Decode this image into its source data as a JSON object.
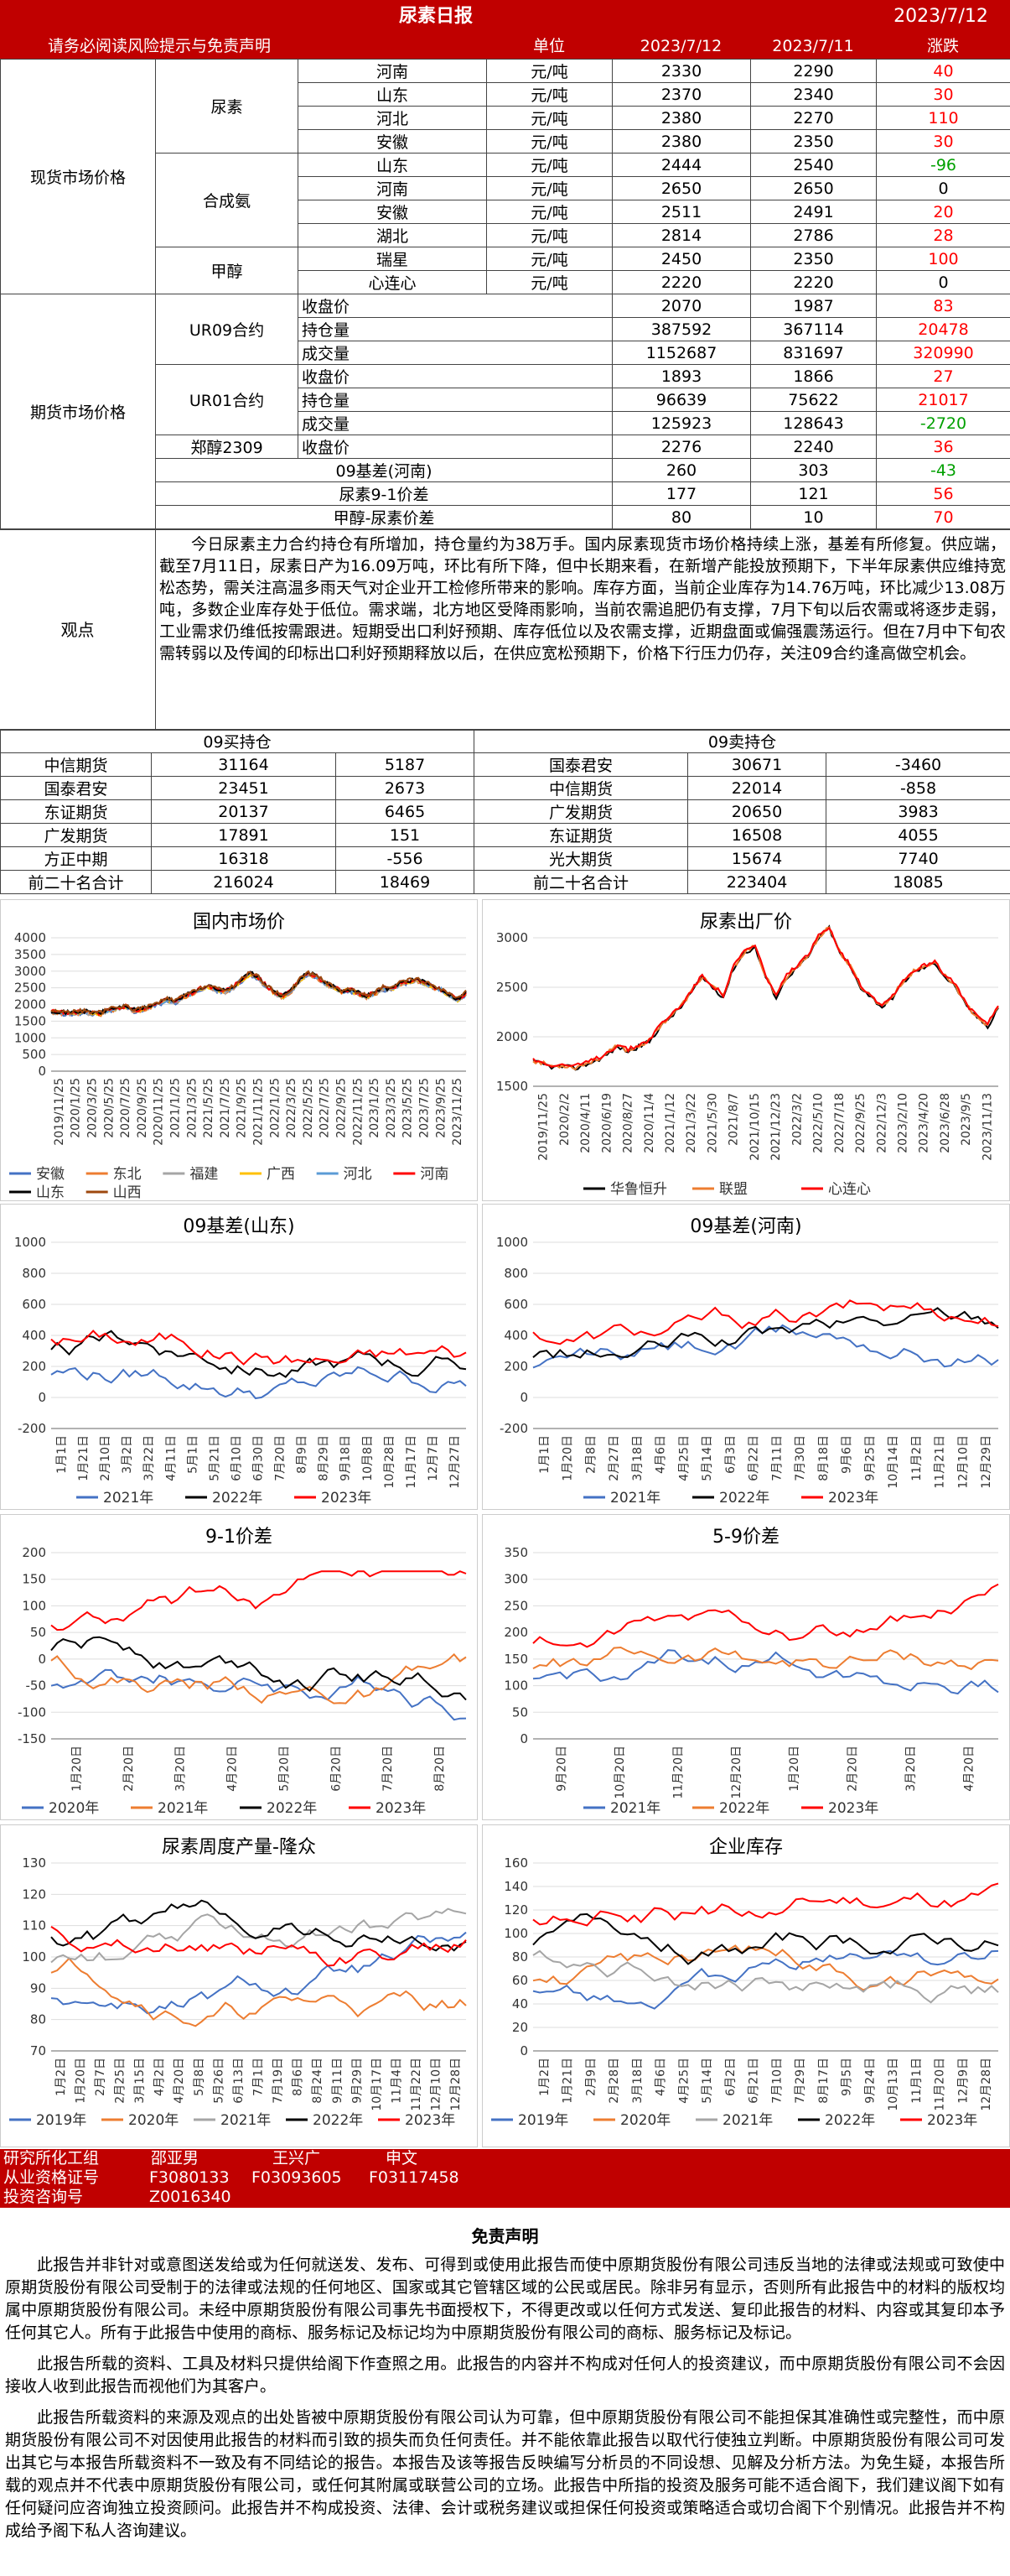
{
  "header": {
    "title": "尿素日报",
    "date": "2023/7/12",
    "notice": "请务必阅读风险提示与免责声明",
    "col_unit": "单位",
    "col_d1": "2023/7/12",
    "col_d2": "2023/7/11",
    "col_chg": "涨跌"
  },
  "spot": {
    "section": "现货市场价格",
    "groups": [
      {
        "name": "尿素",
        "rows": [
          [
            "河南",
            "元/吨",
            "2330",
            "2290",
            "40"
          ],
          [
            "山东",
            "元/吨",
            "2370",
            "2340",
            "30"
          ],
          [
            "河北",
            "元/吨",
            "2380",
            "2270",
            "110"
          ],
          [
            "安徽",
            "元/吨",
            "2380",
            "2350",
            "30"
          ]
        ]
      },
      {
        "name": "合成氨",
        "rows": [
          [
            "山东",
            "元/吨",
            "2444",
            "2540",
            "-96"
          ],
          [
            "河南",
            "元/吨",
            "2650",
            "2650",
            "0"
          ],
          [
            "安徽",
            "元/吨",
            "2511",
            "2491",
            "20"
          ],
          [
            "湖北",
            "元/吨",
            "2814",
            "2786",
            "28"
          ]
        ]
      },
      {
        "name": "甲醇",
        "rows": [
          [
            "瑞星",
            "元/吨",
            "2450",
            "2350",
            "100"
          ],
          [
            "心连心",
            "元/吨",
            "2220",
            "2220",
            "0"
          ]
        ]
      }
    ]
  },
  "futures": {
    "section": "期货市场价格",
    "groups": [
      {
        "name": "UR09合约",
        "rows": [
          [
            "收盘价",
            "2070",
            "1987",
            "83"
          ],
          [
            "持仓量",
            "387592",
            "367114",
            "20478"
          ],
          [
            "成交量",
            "1152687",
            "831697",
            "320990"
          ]
        ]
      },
      {
        "name": "UR01合约",
        "rows": [
          [
            "收盘价",
            "1893",
            "1866",
            "27"
          ],
          [
            "持仓量",
            "96639",
            "75622",
            "21017"
          ],
          [
            "成交量",
            "125923",
            "128643",
            "-2720"
          ]
        ]
      },
      {
        "name": "郑醇2309",
        "rows": [
          [
            "收盘价",
            "2276",
            "2240",
            "36"
          ]
        ]
      }
    ],
    "basis": [
      [
        "09基差(河南)",
        "260",
        "303",
        "-43"
      ],
      [
        "尿素9-1价差",
        "177",
        "121",
        "56"
      ],
      [
        "甲醇-尿素价差",
        "80",
        "10",
        "70"
      ]
    ]
  },
  "observation": {
    "label": "观点",
    "text": "今日尿素主力合约持仓有所增加，持仓量约为38万手。国内尿素现货市场价格持续上涨，基差有所修复。供应端，截至7月11日，尿素日产为16.09万吨，环比有所下降，但中长期来看，在新增产能投放预期下，下半年尿素供应维持宽松态势，需关注高温多雨天气对企业开工检修所带来的影响。库存方面，当前企业库存为14.76万吨，环比减少13.08万吨，多数企业库存处于低位。需求端，北方地区受降雨影响，当前农需追肥仍有支撑，7月下旬以后农需或将逐步走弱，工业需求仍维低按需跟进。短期受出口利好预期、库存低位以及农需支撑，近期盘面或偏强震荡运行。但在7月中下旬农需转弱以及传闻的印标出口利好预期释放以后，在供应宽松预期下，价格下行压力仍存，关注09合约逢高做空机会。"
  },
  "positions": {
    "buy_title": "09买持仓",
    "sell_title": "09卖持仓",
    "rows": [
      [
        "中信期货",
        "31164",
        "5187",
        "国泰君安",
        "30671",
        "-3460"
      ],
      [
        "国泰君安",
        "23451",
        "2673",
        "中信期货",
        "22014",
        "-858"
      ],
      [
        "东证期货",
        "20137",
        "6465",
        "广发期货",
        "20650",
        "3983"
      ],
      [
        "广发期货",
        "17891",
        "151",
        "东证期货",
        "16508",
        "4055"
      ],
      [
        "方正中期",
        "16318",
        "-556",
        "光大期货",
        "15674",
        "7740"
      ],
      [
        "前二十名合计",
        "216024",
        "18469",
        "前二十名合计",
        "223404",
        "18085"
      ]
    ]
  },
  "charts": [
    {
      "id": "c1",
      "title": "国内市场价",
      "chart_data": {
        "type": "line",
        "ylim": [
          0,
          4000
        ],
        "yticks": [
          "0",
          "500",
          "1000",
          "1500",
          "2000",
          "2500",
          "3000",
          "3500",
          "4000"
        ],
        "xticks": [
          "2019/11/25",
          "2020/1/25",
          "2020/3/25",
          "2020/5/25",
          "2020/7/25",
          "2020/9/25",
          "2020/11/25",
          "2021/1/25",
          "2021/3/25",
          "2021/5/25",
          "2021/7/25",
          "2021/9/25",
          "2021/11/25",
          "2022/1/25",
          "2022/3/25",
          "2022/5/25",
          "2022/7/25",
          "2022/9/25",
          "2022/11/25",
          "2023/1/25",
          "2023/3/25",
          "2023/5/25",
          "2023/7/25",
          "2023/9/25",
          "2023/11/25"
        ],
        "series": [
          {
            "name": "安徽",
            "color": "#4472c4"
          },
          {
            "name": "东北",
            "color": "#ed7d31"
          },
          {
            "name": "福建",
            "color": "#a5a5a5"
          },
          {
            "name": "广西",
            "color": "#ffc000"
          },
          {
            "name": "河北",
            "color": "#5b9bd5"
          },
          {
            "name": "河南",
            "color": "#ff0000"
          },
          {
            "name": "山东",
            "color": "#000000"
          },
          {
            "name": "山西",
            "color": "#9e480e"
          }
        ],
        "base": [
          1750,
          1730,
          1700,
          1720,
          1740,
          1700,
          1690,
          1800,
          1850,
          1900,
          1780,
          1820,
          1900,
          2000,
          2100,
          2050,
          2200,
          2300,
          2450,
          2500,
          2400,
          2350,
          2500,
          2700,
          2900,
          2750,
          2500,
          2300,
          2200,
          2400,
          2700,
          2900,
          2800,
          2600,
          2500,
          2350,
          2400,
          2300,
          2200,
          2300,
          2450,
          2400,
          2600,
          2650,
          2700,
          2600,
          2500,
          2400,
          2250,
          2100,
          2300
        ]
      }
    },
    {
      "id": "c2",
      "title": "尿素出厂价",
      "chart_data": {
        "type": "line",
        "ylim": [
          1500,
          3500
        ],
        "yticks": [
          "1500",
          "2000",
          "2500",
          "3000"
        ],
        "xticks": [
          "2019/11/25",
          "2020/2/2",
          "2020/4/11",
          "2020/6/19",
          "2020/8/27",
          "2020/11/4",
          "2021/1/12",
          "2021/3/22",
          "2021/5/30",
          "2021/8/7",
          "2021/10/15",
          "2021/12/23",
          "2022/3/2",
          "2022/5/10",
          "2022/7/18",
          "2022/9/25",
          "2022/12/3",
          "2023/2/10",
          "2023/4/20",
          "2023/6/28",
          "2023/9/5",
          "2023/11/13"
        ],
        "series": [
          {
            "name": "华鲁恒升",
            "color": "#000000"
          },
          {
            "name": "联盟",
            "color": "#ed7d31"
          },
          {
            "name": "心连心",
            "color": "#ff0000"
          }
        ],
        "base": [
          1750,
          1720,
          1690,
          1700,
          1680,
          1720,
          1760,
          1820,
          1900,
          1850,
          1900,
          1950,
          2100,
          2200,
          2300,
          2450,
          2600,
          2500,
          2400,
          2700,
          2850,
          2900,
          2600,
          2400,
          2600,
          2700,
          2800,
          3000,
          3100,
          2850,
          2700,
          2500,
          2400,
          2300,
          2400,
          2550,
          2650,
          2700,
          2750,
          2600,
          2500,
          2300,
          2200,
          2100,
          2300
        ]
      }
    },
    {
      "id": "c3",
      "title": "09基差(山东)",
      "chart_data": {
        "type": "line",
        "ylim": [
          -200,
          1000
        ],
        "yticks": [
          "-200",
          "0",
          "200",
          "400",
          "600",
          "800",
          "1000"
        ],
        "xticks": [
          "1月1日",
          "1月21日",
          "2月10日",
          "3月2日",
          "3月22日",
          "4月11日",
          "5月1日",
          "5月21日",
          "6月10日",
          "6月30日",
          "7月20日",
          "8月9日",
          "8月29日",
          "9月18日",
          "10月8日",
          "10月28日",
          "11月17日",
          "12月7日",
          "12月27日"
        ],
        "series": [
          {
            "name": "2021年",
            "color": "#4472c4"
          },
          {
            "name": "2022年",
            "color": "#000000"
          },
          {
            "name": "2023年",
            "color": "#ff0000"
          }
        ]
      }
    },
    {
      "id": "c4",
      "title": "09基差(河南)",
      "chart_data": {
        "type": "line",
        "ylim": [
          -200,
          1000
        ],
        "yticks": [
          "-200",
          "0",
          "200",
          "400",
          "600",
          "800",
          "1000"
        ],
        "xticks": [
          "1月1日",
          "1月20日",
          "2月8日",
          "2月27日",
          "3月18日",
          "4月6日",
          "4月25日",
          "5月14日",
          "6月3日",
          "6月22日",
          "7月11日",
          "7月30日",
          "8月18日",
          "9月6日",
          "9月25日",
          "10月14日",
          "11月2日",
          "11月21日",
          "12月10日",
          "12月29日"
        ],
        "series": [
          {
            "name": "2021年",
            "color": "#4472c4"
          },
          {
            "name": "2022年",
            "color": "#000000"
          },
          {
            "name": "2023年",
            "color": "#ff0000"
          }
        ]
      }
    },
    {
      "id": "c5",
      "title": "9-1价差",
      "chart_data": {
        "type": "line",
        "ylim": [
          -150,
          200
        ],
        "yticks": [
          "-150",
          "-100",
          "-50",
          "0",
          "50",
          "100",
          "150",
          "200"
        ],
        "xticks": [
          "1月20日",
          "2月20日",
          "3月20日",
          "4月20日",
          "5月20日",
          "6月20日",
          "7月20日",
          "8月20日"
        ],
        "series": [
          {
            "name": "2020年",
            "color": "#4472c4"
          },
          {
            "name": "2021年",
            "color": "#ed7d31"
          },
          {
            "name": "2022年",
            "color": "#000000"
          },
          {
            "name": "2023年",
            "color": "#ff0000"
          }
        ]
      }
    },
    {
      "id": "c6",
      "title": "5-9价差",
      "chart_data": {
        "type": "line",
        "ylim": [
          0,
          350
        ],
        "yticks": [
          "0",
          "50",
          "100",
          "150",
          "200",
          "250",
          "300",
          "350"
        ],
        "xticks": [
          "9月20日",
          "10月20日",
          "11月20日",
          "12月20日",
          "1月20日",
          "2月20日",
          "3月20日",
          "4月20日"
        ],
        "series": [
          {
            "name": "2021年",
            "color": "#4472c4"
          },
          {
            "name": "2022年",
            "color": "#ed7d31"
          },
          {
            "name": "2023年",
            "color": "#ff0000"
          }
        ]
      }
    },
    {
      "id": "c7",
      "title": "尿素周度产量-隆众",
      "chart_data": {
        "type": "line",
        "ylim": [
          70,
          130
        ],
        "yticks": [
          "70",
          "80",
          "90",
          "100",
          "110",
          "120",
          "130"
        ],
        "xticks": [
          "1月2日",
          "1月20日",
          "2月7日",
          "2月25日",
          "3月15日",
          "4月2日",
          "4月20日",
          "5月8日",
          "5月26日",
          "6月13日",
          "7月1日",
          "7月19日",
          "8月6日",
          "8月24日",
          "9月11日",
          "9月29日",
          "10月17日",
          "11月4日",
          "11月22日",
          "12月10日",
          "12月28日"
        ],
        "series": [
          {
            "name": "2019年",
            "color": "#4472c4"
          },
          {
            "name": "2020年",
            "color": "#ed7d31"
          },
          {
            "name": "2021年",
            "color": "#a5a5a5"
          },
          {
            "name": "2022年",
            "color": "#000000"
          },
          {
            "name": "2023年",
            "color": "#ff0000"
          }
        ]
      }
    },
    {
      "id": "c8",
      "title": "企业库存",
      "chart_data": {
        "type": "line",
        "ylim": [
          0,
          160
        ],
        "yticks": [
          "0",
          "20",
          "40",
          "60",
          "80",
          "100",
          "120",
          "140",
          "160"
        ],
        "xticks": [
          "1月2日",
          "1月21日",
          "2月9日",
          "2月28日",
          "3月18日",
          "4月6日",
          "4月25日",
          "5月14日",
          "6月2日",
          "6月21日",
          "7月10日",
          "7月29日",
          "8月17日",
          "9月5日",
          "9月24日",
          "10月13日",
          "11月1日",
          "11月20日",
          "12月9日",
          "12月28日"
        ],
        "series": [
          {
            "name": "2019年",
            "color": "#4472c4"
          },
          {
            "name": "2020年",
            "color": "#ed7d31"
          },
          {
            "name": "2021年",
            "color": "#a5a5a5"
          },
          {
            "name": "2022年",
            "color": "#000000"
          },
          {
            "name": "2023年",
            "color": "#ff0000"
          }
        ]
      }
    }
  ],
  "footer": {
    "l1": "研究所化工组",
    "l2": "从业资格证号",
    "l3": "投资咨询号",
    "n1": "邵亚男",
    "n2": "王兴广",
    "n3": "申文",
    "c1": "F3080133",
    "c2": "F03093605",
    "c3": "F03117458",
    "z1": "Z0016340"
  },
  "disclaimer": {
    "title": "免责声明",
    "p1": "此报告并非针对或意图送发给或为任何就送发、发布、可得到或使用此报告而使中原期货股份有限公司违反当地的法律或法规或可致使中原期货股份有限公司受制于的法律或法规的任何地区、国家或其它管辖区域的公民或居民。除非另有显示，否则所有此报告中的材料的版权均属中原期货股份有限公司。未经中原期货股份有限公司事先书面授权下，不得更改或以任何方式发送、复印此报告的材料、内容或其复印本予任何其它人。所有于此报告中使用的商标、服务标记及标记均为中原期货股份有限公司的商标、服务标记及标记。",
    "p2": "此报告所载的资料、工具及材料只提供给阁下作查照之用。此报告的内容并不构成对任何人的投资建议，而中原期货股份有限公司不会因接收人收到此报告而视他们为其客户。",
    "p3": "此报告所载资料的来源及观点的出处皆被中原期货股份有限公司认为可靠，但中原期货股份有限公司不能担保其准确性或完整性，而中原期货股份有限公司不对因使用此报告的材料而引致的损失而负任何责任。并不能依靠此报告以取代行使独立判断。中原期货股份有限公司可发出其它与本报告所载资料不一致及有不同结论的报告。本报告及该等报告反映编写分析员的不同设想、见解及分析方法。为免生疑，本报告所载的观点并不代表中原期货股份有限公司，或任何其附属或联营公司的立场。此报告中所指的投资及服务可能不适合阁下，我们建议阁下如有任何疑问应咨询独立投资顾问。此报告并不构成投资、法律、会计或税务建议或担保任何投资或策略适合或切合阁下个别情况。此报告并不构成给予阁下私人咨询建议。"
  }
}
